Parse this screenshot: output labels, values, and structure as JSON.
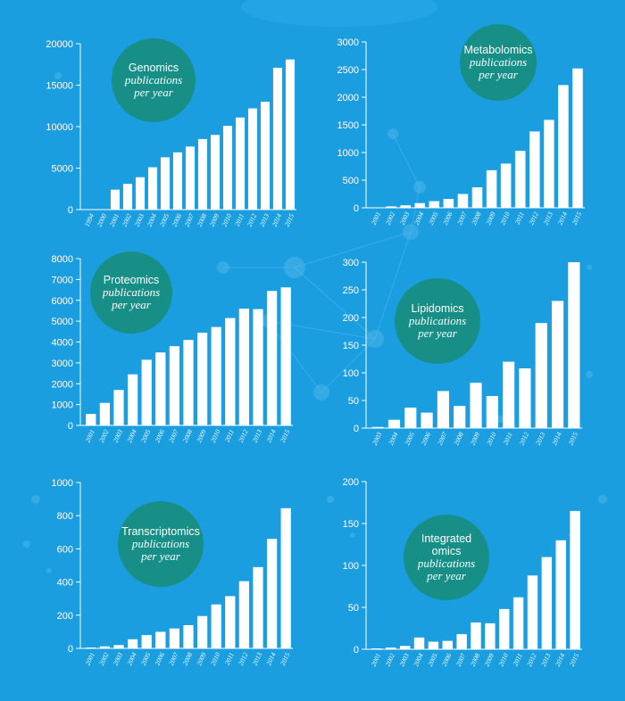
{
  "colors": {
    "background": "#1a9ee0",
    "badge": "#178f86",
    "bar": "#ffffff",
    "text": "#ffffff"
  },
  "chart_data": [
    {
      "type": "bar",
      "title_lines": [
        "Genomics"
      ],
      "subtitle_lines": [
        "publications",
        "per year"
      ],
      "categories": [
        "1994",
        "2000",
        "2001",
        "2002",
        "2003",
        "2004",
        "2005",
        "2006",
        "2007",
        "2008",
        "2009",
        "2010",
        "2011",
        "2012",
        "2013",
        "2014",
        "2015"
      ],
      "values": [
        0,
        0,
        2400,
        3100,
        3900,
        5100,
        6300,
        6900,
        7600,
        8500,
        9000,
        10100,
        11100,
        12200,
        13000,
        17100,
        18100
      ],
      "ylim": [
        0,
        20000
      ],
      "yticks": [
        0,
        5000,
        10000,
        15000,
        20000
      ]
    },
    {
      "type": "bar",
      "title_lines": [
        "Metabolomics"
      ],
      "subtitle_lines": [
        "publications",
        "per year"
      ],
      "categories": [
        "2001",
        "2002",
        "2003",
        "2004",
        "2005",
        "2006",
        "2007",
        "2008",
        "2009",
        "2010",
        "2011",
        "2012",
        "2013",
        "2014",
        "2015"
      ],
      "values": [
        5,
        25,
        45,
        85,
        120,
        160,
        250,
        370,
        680,
        800,
        1030,
        1380,
        1590,
        2220,
        2520
      ],
      "ylim": [
        0,
        3000
      ],
      "yticks": [
        0,
        500,
        1000,
        1500,
        2000,
        2500,
        3000
      ]
    },
    {
      "type": "bar",
      "title_lines": [
        "Proteomics"
      ],
      "subtitle_lines": [
        "publications",
        "per year"
      ],
      "categories": [
        "2001",
        "2002",
        "2003",
        "2004",
        "2005",
        "2006",
        "2007",
        "2008",
        "2009",
        "2010",
        "2011",
        "2012",
        "2013",
        "2014",
        "2015"
      ],
      "values": [
        550,
        1080,
        1700,
        2450,
        3150,
        3500,
        3800,
        4100,
        4450,
        4720,
        5150,
        5600,
        5580,
        6450,
        6620
      ],
      "ylim": [
        0,
        8000
      ],
      "yticks": [
        0,
        1000,
        2000,
        3000,
        4000,
        5000,
        6000,
        7000,
        8000
      ]
    },
    {
      "type": "bar",
      "title_lines": [
        "Lipidomics"
      ],
      "subtitle_lines": [
        "publications",
        "per year"
      ],
      "categories": [
        "2003",
        "2004",
        "2005",
        "2006",
        "2007",
        "2008",
        "2009",
        "2010",
        "2011",
        "2012",
        "2013",
        "2014",
        "2015"
      ],
      "values": [
        2,
        15,
        37,
        28,
        67,
        40,
        82,
        58,
        120,
        108,
        190,
        230,
        300
      ],
      "ylim": [
        0,
        300
      ],
      "yticks": [
        0,
        50,
        100,
        150,
        200,
        250,
        300
      ]
    },
    {
      "type": "bar",
      "title_lines": [
        "Transcriptomics"
      ],
      "subtitle_lines": [
        "publications",
        "per year"
      ],
      "categories": [
        "2001",
        "2002",
        "2003",
        "2004",
        "2005",
        "2006",
        "2007",
        "2008",
        "2009",
        "2010",
        "2011",
        "2012",
        "2013",
        "2014",
        "2015"
      ],
      "values": [
        5,
        12,
        20,
        55,
        80,
        100,
        120,
        140,
        195,
        265,
        315,
        405,
        490,
        660,
        845
      ],
      "ylim": [
        0,
        1000
      ],
      "yticks": [
        0,
        200,
        400,
        600,
        800,
        1000
      ]
    },
    {
      "type": "bar",
      "title_lines": [
        "Integrated",
        "omics"
      ],
      "subtitle_lines": [
        "publications",
        "per year"
      ],
      "categories": [
        "2001",
        "2002",
        "2003",
        "2004",
        "2005",
        "2006",
        "2007",
        "2008",
        "2009",
        "2010",
        "2011",
        "2012",
        "2013",
        "2014",
        "2015"
      ],
      "values": [
        1,
        2,
        4,
        14,
        9,
        10,
        18,
        32,
        31,
        48,
        62,
        88,
        110,
        130,
        165
      ],
      "ylim": [
        0,
        200
      ],
      "yticks": [
        0,
        50,
        100,
        150,
        200
      ]
    }
  ]
}
